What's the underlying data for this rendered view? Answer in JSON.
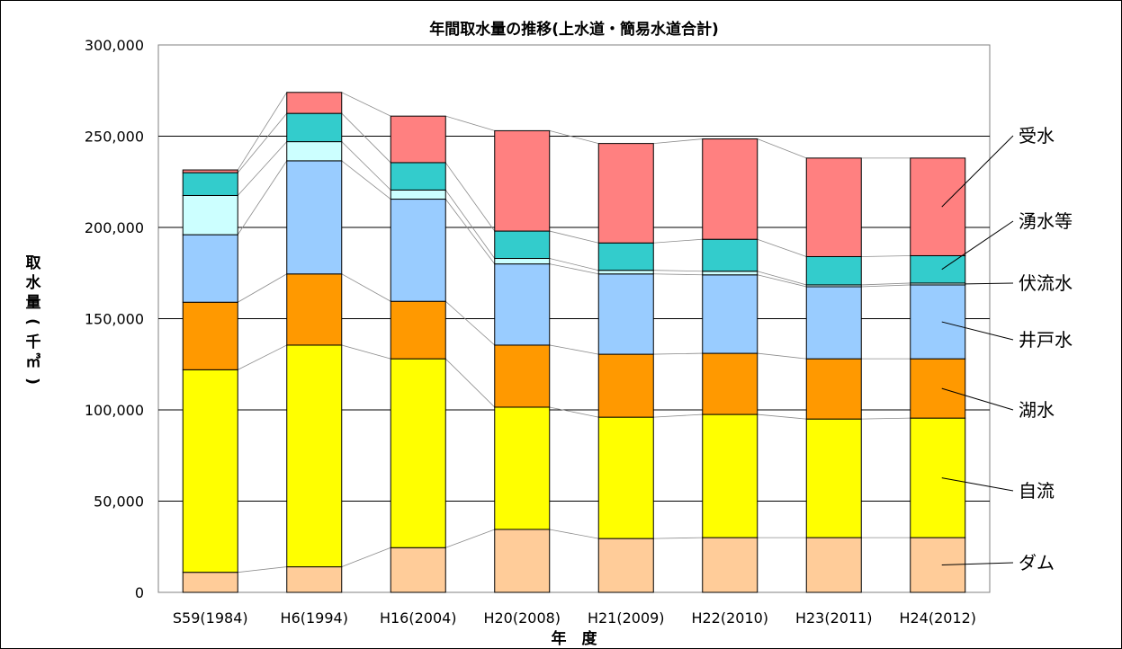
{
  "chart_data": {
    "type": "bar",
    "stacked": true,
    "title": "年間取水量の推移(上水道・簡易水道合計)",
    "xlabel": "年　度",
    "ylabel": "取水量(千㎥)",
    "ylim": [
      0,
      300000
    ],
    "yticks": [
      0,
      50000,
      100000,
      150000,
      200000,
      250000,
      300000
    ],
    "ytick_labels": [
      "0",
      "50,000",
      "100,000",
      "150,000",
      "200,000",
      "250,000",
      "300,000"
    ],
    "grid": true,
    "legend_placement": "right",
    "categories": [
      "S59(1984)",
      "H6(1994)",
      "H16(2004)",
      "H20(2008)",
      "H21(2009)",
      "H22(2010)",
      "H23(2011)",
      "H24(2012)"
    ],
    "series": [
      {
        "name": "ダム",
        "color": "#FFCC99",
        "values": [
          11000,
          14000,
          24500,
          34500,
          29500,
          30000,
          30000,
          30000
        ]
      },
      {
        "name": "自流",
        "color": "#FFFF00",
        "values": [
          111000,
          121500,
          103500,
          67000,
          66500,
          67500,
          65000,
          65500
        ]
      },
      {
        "name": "湖水",
        "color": "#FF9900",
        "values": [
          37000,
          39000,
          31500,
          34000,
          34500,
          33500,
          33000,
          32500
        ]
      },
      {
        "name": "井戸水",
        "color": "#99CCFF",
        "values": [
          37000,
          62000,
          56000,
          44500,
          44000,
          43000,
          39500,
          40500
        ]
      },
      {
        "name": "伏流水",
        "color": "#CCFFFF",
        "values": [
          21500,
          10500,
          5000,
          3000,
          2000,
          2000,
          1000,
          1000
        ]
      },
      {
        "name": "湧水等",
        "color": "#33CCCC",
        "values": [
          12500,
          15500,
          15000,
          15000,
          15000,
          17500,
          15500,
          15000
        ]
      },
      {
        "name": "受水",
        "color": "#FF8080",
        "values": [
          1500,
          11500,
          25500,
          55000,
          54500,
          55000,
          54000,
          53500
        ]
      }
    ]
  }
}
